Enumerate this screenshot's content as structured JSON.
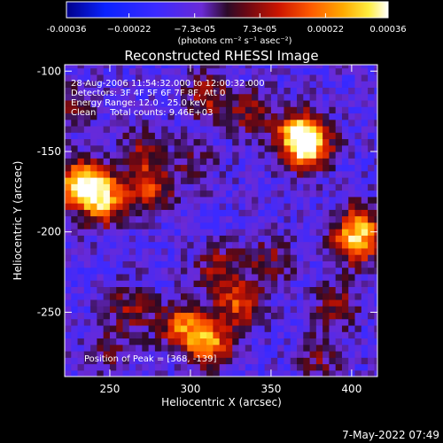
{
  "chart_data": {
    "type": "heatmap",
    "title": "Reconstructed RHESSI Image",
    "xlabel": "Heliocentric X (arcsec)",
    "ylabel": "Heliocentric Y (arcsec)",
    "xlim": [
      222,
      416
    ],
    "ylim": [
      -290,
      -96
    ],
    "x_ticks": [
      250,
      300,
      350,
      400
    ],
    "y_ticks": [
      -100,
      -150,
      -200,
      -250
    ],
    "colorbar": {
      "min": -0.00036,
      "max": 0.00036,
      "tick_values": [
        -0.00036,
        -0.00022,
        -7.3e-05,
        7.3e-05,
        0.00022,
        0.00036
      ],
      "tick_labels": [
        "-0.00036",
        "−0.00022",
        "−7.3e-05",
        "7.3e-05",
        "0.00022",
        "0.00036"
      ],
      "units": "(photons cm⁻² s⁻¹ asec⁻²)"
    },
    "annotations": [
      "28-Aug-2006 11:54:32.000 to 12:00:32.000",
      "Detectors: 3F 4F 5F 6F 7F 8F, Att 0",
      "Energy Range: 12.0 - 25.0 keV",
      "Clean     Total counts: 9.46E+03"
    ],
    "peak_label": "Position of Peak = [368, -139]",
    "sources": [
      {
        "x": 368,
        "y": -139,
        "value": 0.00036
      },
      {
        "x": 373,
        "y": -147,
        "value": 0.00033
      },
      {
        "x": 240,
        "y": -172,
        "value": 0.0003
      },
      {
        "x": 228,
        "y": -170,
        "value": 0.00026
      },
      {
        "x": 247,
        "y": -183,
        "value": 0.00024
      },
      {
        "x": 275,
        "y": -172,
        "value": 0.00022
      },
      {
        "x": 312,
        "y": -269,
        "value": 0.00032
      },
      {
        "x": 295,
        "y": -258,
        "value": 0.00028
      },
      {
        "x": 330,
        "y": -245,
        "value": 0.00024
      },
      {
        "x": 405,
        "y": -197,
        "value": 0.00026
      },
      {
        "x": 402,
        "y": -208,
        "value": 0.00022
      },
      {
        "x": 310,
        "y": -116,
        "value": 0.00018
      },
      {
        "x": 338,
        "y": -125,
        "value": 0.00016
      },
      {
        "x": 262,
        "y": -248,
        "value": 0.00017
      },
      {
        "x": 318,
        "y": -223,
        "value": 0.00018
      },
      {
        "x": 350,
        "y": -218,
        "value": 0.00014
      },
      {
        "x": 270,
        "y": -150,
        "value": 0.00015
      },
      {
        "x": 302,
        "y": -158,
        "value": 0.0001
      },
      {
        "x": 390,
        "y": -245,
        "value": 0.00016
      },
      {
        "x": 380,
        "y": -278,
        "value": 0.00012
      },
      {
        "x": 228,
        "y": -122,
        "value": 0.00012
      },
      {
        "x": 250,
        "y": -275,
        "value": 0.0001
      }
    ]
  },
  "footer": {
    "timestamp": "7-May-2022 07:49"
  }
}
